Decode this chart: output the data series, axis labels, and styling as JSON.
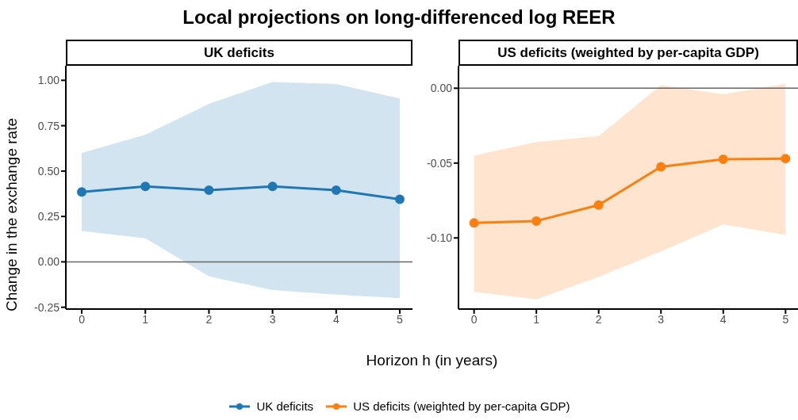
{
  "chart_data": [
    {
      "type": "line",
      "title": "Local projections on long-differenced log REER",
      "subtitle": "UK deficits",
      "ylabel": "Change in the exchange rate",
      "x": [
        0,
        1,
        2,
        3,
        4,
        5
      ],
      "series": [
        {
          "name": "UK deficits",
          "color": "#1f77b4",
          "values": [
            0.385,
            0.415,
            0.395,
            0.415,
            0.395,
            0.345
          ],
          "lower": [
            0.17,
            0.13,
            -0.08,
            -0.155,
            -0.18,
            -0.2
          ],
          "upper": [
            0.6,
            0.7,
            0.87,
            0.99,
            0.98,
            0.9
          ]
        }
      ],
      "xlim": [
        -0.25,
        5.2
      ],
      "xticks": [
        0,
        1,
        2,
        3,
        4,
        5
      ],
      "ylim": [
        -0.26,
        1.08
      ],
      "yticks": [
        {
          "value": -0.25,
          "label": "-0.25"
        },
        {
          "value": 0,
          "label": "0.00"
        },
        0.25,
        {
          "value": 0.5,
          "label": "0.50"
        },
        0.75,
        {
          "value": 1,
          "label": "1.00"
        }
      ],
      "ref_lines": [
        {
          "axis": "y",
          "value": 0,
          "color": "#666666"
        }
      ],
      "marker": "circle",
      "grid": false,
      "legend": "bottom"
    },
    {
      "type": "line",
      "subtitle": "US deficits (weighted by per-capita GDP)",
      "xlabel": "Horizon h (in years)",
      "x": [
        0,
        1,
        2,
        3,
        4,
        5
      ],
      "series": [
        {
          "name": "US deficits (weighted by per-capita GDP)",
          "color": "#ff7f0e",
          "values": [
            -0.09,
            -0.0887,
            -0.078,
            -0.0525,
            -0.0475,
            -0.047
          ],
          "lower": [
            -0.136,
            -0.141,
            -0.126,
            -0.109,
            -0.091,
            -0.098
          ],
          "upper": [
            -0.045,
            -0.036,
            -0.032,
            0.002,
            -0.004,
            0.003
          ]
        }
      ],
      "xlim": [
        -0.25,
        5.2
      ],
      "xticks": [
        0,
        1,
        2,
        3,
        4,
        5
      ],
      "ylim": [
        -0.1475,
        0.015
      ],
      "yticks": [
        {
          "value": -0.1,
          "label": "-0.10"
        },
        {
          "value": -0.05,
          "label": "-0.05"
        },
        {
          "value": 0,
          "label": "0.00"
        }
      ],
      "ref_lines": [
        {
          "axis": "y",
          "value": 0,
          "color": "#666666"
        }
      ],
      "marker": "circle",
      "grid": false,
      "legend": "bottom"
    }
  ]
}
